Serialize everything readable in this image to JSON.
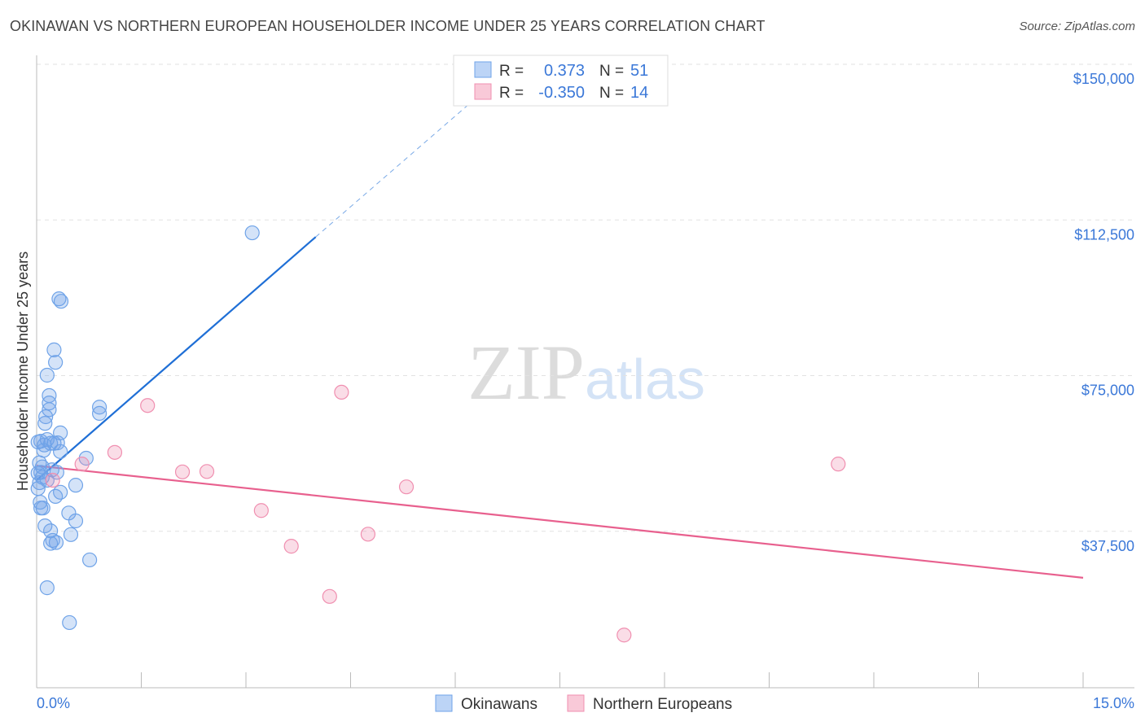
{
  "title": "OKINAWAN VS NORTHERN EUROPEAN HOUSEHOLDER INCOME UNDER 25 YEARS CORRELATION CHART",
  "source": "Source: ZipAtlas.com",
  "watermark": "ZIPatlas",
  "chart_data": {
    "type": "scatter",
    "ylabel": "Householder Income Under 25 years",
    "xlim": [
      0,
      15
    ],
    "ylim": [
      0,
      150000
    ],
    "x_tick_labels": [
      "0.0%",
      "15.0%"
    ],
    "y_ticks": [
      37500,
      75000,
      112500,
      150000
    ],
    "y_tick_labels": [
      "$37,500",
      "$75,000",
      "$112,500",
      "$150,000"
    ],
    "legend": [
      {
        "name": "Okinawans",
        "r_label": "R =",
        "r": "0.373",
        "n_label": "N =",
        "n": "51",
        "color": "#6fa3e8"
      },
      {
        "name": "Northern Europeans",
        "r_label": "R =",
        "r": "-0.350",
        "n_label": "N =",
        "n": "14",
        "color": "#f08fb0"
      }
    ],
    "series": [
      {
        "name": "Okinawans",
        "color": "#6fa3e8",
        "line_color": "#1f6fd6",
        "trend": {
          "x0": 0,
          "y0": 49800,
          "x1": 4.0,
          "y1": 108400,
          "dash_to_x": 6.3,
          "dash_to_y": 141900
        },
        "points": [
          [
            3.09,
            109400
          ],
          [
            0.32,
            93500
          ],
          [
            0.35,
            92900
          ],
          [
            0.25,
            81200
          ],
          [
            0.27,
            78200
          ],
          [
            0.15,
            75100
          ],
          [
            0.18,
            70200
          ],
          [
            0.18,
            68400
          ],
          [
            0.18,
            66800
          ],
          [
            0.13,
            65100
          ],
          [
            0.12,
            63500
          ],
          [
            0.34,
            61200
          ],
          [
            0.06,
            59200
          ],
          [
            0.15,
            59600
          ],
          [
            0.2,
            58700
          ],
          [
            0.25,
            58700
          ],
          [
            0.11,
            58300
          ],
          [
            0.9,
            67400
          ],
          [
            0.9,
            65900
          ],
          [
            0.34,
            56700
          ],
          [
            0.71,
            55100
          ],
          [
            0.04,
            54000
          ],
          [
            0.08,
            53000
          ],
          [
            0.22,
            52300
          ],
          [
            0.29,
            51700
          ],
          [
            0.06,
            51700
          ],
          [
            0.04,
            49200
          ],
          [
            0.15,
            49800
          ],
          [
            0.56,
            48600
          ],
          [
            0.34,
            46900
          ],
          [
            0.27,
            45900
          ],
          [
            0.06,
            43100
          ],
          [
            0.09,
            43100
          ],
          [
            0.46,
            41900
          ],
          [
            0.56,
            40000
          ],
          [
            0.12,
            38800
          ],
          [
            0.2,
            37600
          ],
          [
            0.49,
            36700
          ],
          [
            0.23,
            35300
          ],
          [
            0.28,
            34800
          ],
          [
            0.2,
            34600
          ],
          [
            0.76,
            30600
          ],
          [
            0.15,
            23900
          ],
          [
            0.47,
            15500
          ],
          [
            0.02,
            59000
          ],
          [
            0.02,
            51500
          ],
          [
            0.02,
            47800
          ],
          [
            0.1,
            57000
          ],
          [
            0.05,
            44500
          ],
          [
            0.3,
            58800
          ],
          [
            0.08,
            50500
          ]
        ]
      },
      {
        "name": "Northern Europeans",
        "color": "#f08fb0",
        "line_color": "#e8608e",
        "trend": {
          "x0": 0,
          "y0": 53300,
          "x1": 15,
          "y1": 26300
        },
        "points": [
          [
            1.59,
            67800
          ],
          [
            4.37,
            71000
          ],
          [
            1.12,
            56500
          ],
          [
            0.65,
            53700
          ],
          [
            2.09,
            51800
          ],
          [
            2.44,
            51900
          ],
          [
            5.3,
            48200
          ],
          [
            3.22,
            42500
          ],
          [
            3.65,
            33900
          ],
          [
            4.75,
            36800
          ],
          [
            4.2,
            21800
          ],
          [
            8.42,
            12500
          ],
          [
            11.49,
            53700
          ],
          [
            0.23,
            49800
          ]
        ]
      }
    ]
  }
}
